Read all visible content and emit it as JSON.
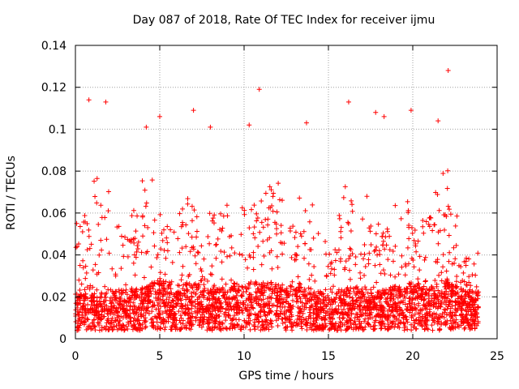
{
  "chart_data": {
    "type": "scatter",
    "title": "Day 087 of 2018, Rate Of TEC Index for receiver ijmu",
    "xlabel": "GPS time / hours",
    "ylabel": "ROTI / TECUs",
    "xlim": [
      0,
      25
    ],
    "ylim": [
      0,
      0.14
    ],
    "xticks": [
      0,
      5,
      10,
      15,
      20,
      25
    ],
    "yticks": [
      0,
      0.02,
      0.04,
      0.06,
      0.08,
      0.1,
      0.12,
      0.14
    ],
    "xtick_labels": [
      "0",
      "5",
      "10",
      "15",
      "20",
      "25"
    ],
    "ytick_labels": [
      "0",
      "0.02",
      "0.04",
      "0.06",
      "0.08",
      "0.1",
      "0.12",
      "0.14"
    ],
    "grid": true,
    "marker": "+",
    "color": "#ff0000",
    "x_data_range": [
      0,
      23.9
    ],
    "outliers": [
      {
        "x": 0.8,
        "y": 0.114
      },
      {
        "x": 1.8,
        "y": 0.113
      },
      {
        "x": 4.2,
        "y": 0.101
      },
      {
        "x": 5.0,
        "y": 0.106
      },
      {
        "x": 7.0,
        "y": 0.109
      },
      {
        "x": 8.0,
        "y": 0.101
      },
      {
        "x": 10.3,
        "y": 0.102
      },
      {
        "x": 10.9,
        "y": 0.119
      },
      {
        "x": 13.7,
        "y": 0.103
      },
      {
        "x": 16.2,
        "y": 0.113
      },
      {
        "x": 17.8,
        "y": 0.108
      },
      {
        "x": 18.3,
        "y": 0.106
      },
      {
        "x": 19.9,
        "y": 0.109
      },
      {
        "x": 21.5,
        "y": 0.104
      },
      {
        "x": 22.1,
        "y": 0.128
      }
    ],
    "density_profile": [
      {
        "x": 0,
        "base": 0.012,
        "peak": 0.045
      },
      {
        "x": 1,
        "base": 0.012,
        "peak": 0.07
      },
      {
        "x": 2,
        "base": 0.013,
        "peak": 0.06
      },
      {
        "x": 3,
        "base": 0.013,
        "peak": 0.05
      },
      {
        "x": 4,
        "base": 0.014,
        "peak": 0.07
      },
      {
        "x": 5,
        "base": 0.016,
        "peak": 0.06
      },
      {
        "x": 6,
        "base": 0.014,
        "peak": 0.05
      },
      {
        "x": 7,
        "base": 0.015,
        "peak": 0.07
      },
      {
        "x": 8,
        "base": 0.013,
        "peak": 0.05
      },
      {
        "x": 9,
        "base": 0.014,
        "peak": 0.06
      },
      {
        "x": 10,
        "base": 0.016,
        "peak": 0.07
      },
      {
        "x": 11,
        "base": 0.015,
        "peak": 0.06
      },
      {
        "x": 12,
        "base": 0.015,
        "peak": 0.065
      },
      {
        "x": 13,
        "base": 0.014,
        "peak": 0.055
      },
      {
        "x": 14,
        "base": 0.013,
        "peak": 0.06
      },
      {
        "x": 15,
        "base": 0.012,
        "peak": 0.045
      },
      {
        "x": 16,
        "base": 0.014,
        "peak": 0.07
      },
      {
        "x": 17,
        "base": 0.014,
        "peak": 0.06
      },
      {
        "x": 18,
        "base": 0.013,
        "peak": 0.05
      },
      {
        "x": 19,
        "base": 0.014,
        "peak": 0.06
      },
      {
        "x": 20,
        "base": 0.015,
        "peak": 0.055
      },
      {
        "x": 21,
        "base": 0.014,
        "peak": 0.06
      },
      {
        "x": 22,
        "base": 0.016,
        "peak": 0.07
      },
      {
        "x": 23,
        "base": 0.013,
        "peak": 0.04
      },
      {
        "x": 23.9,
        "base": 0.012,
        "peak": 0.035
      }
    ]
  }
}
